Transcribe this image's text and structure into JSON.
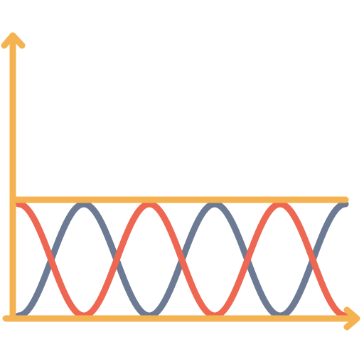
{
  "icon": {
    "semantic": "sine-waves-chart-icon",
    "colors": {
      "axis": "#F4B350",
      "wave_a": "#EE6752",
      "wave_b": "#6C7A94",
      "background": "#FFFFFF"
    },
    "waves": {
      "cycles": 2.5,
      "phase_offset_cycles": 0.5
    }
  }
}
